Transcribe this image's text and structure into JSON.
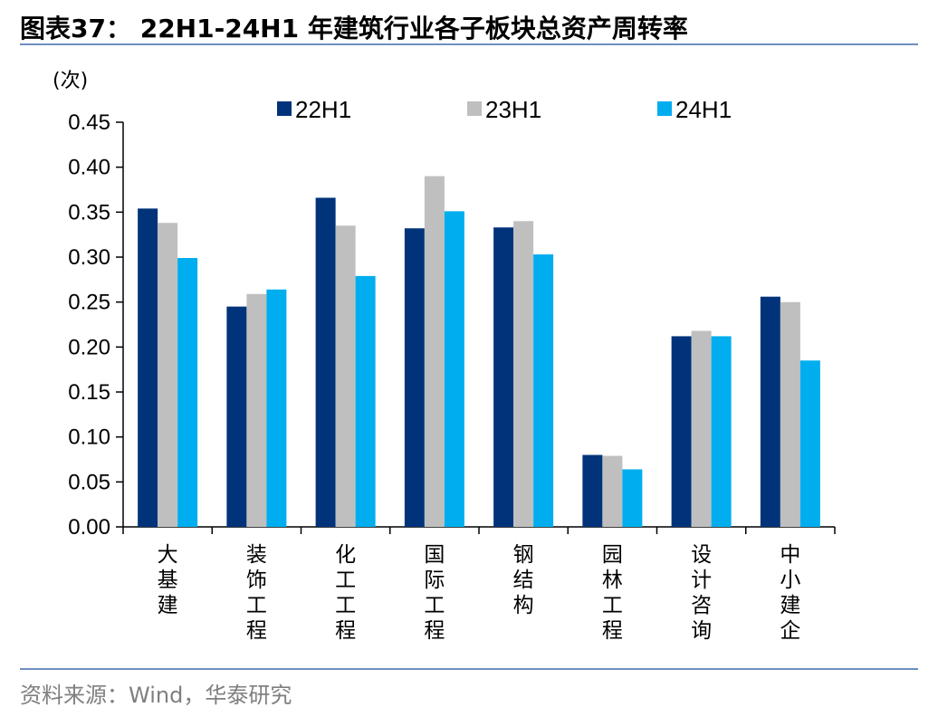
{
  "header": {
    "title": "图表37：  22H1-24H1 年建筑行业各子板块总资产周转率"
  },
  "footer": {
    "source": "资料来源：Wind，华泰研究"
  },
  "chart_data": {
    "type": "bar",
    "unit": "(次)",
    "categories": [
      "大基建",
      "装饰工程",
      "化工工程",
      "国际工程",
      "钢结构",
      "园林工程",
      "设计咨询",
      "中小建企"
    ],
    "series": [
      {
        "name": "22H1",
        "color": "#00337a",
        "values": [
          0.354,
          0.245,
          0.366,
          0.332,
          0.333,
          0.08,
          0.212,
          0.256
        ]
      },
      {
        "name": "23H1",
        "color": "#bfbfbf",
        "values": [
          0.338,
          0.259,
          0.335,
          0.39,
          0.34,
          0.079,
          0.218,
          0.25
        ]
      },
      {
        "name": "24H1",
        "color": "#00aeef",
        "values": [
          0.299,
          0.264,
          0.279,
          0.351,
          0.303,
          0.064,
          0.212,
          0.185
        ]
      }
    ],
    "ylim": [
      0,
      0.45
    ],
    "yticks": [
      "0.00",
      "0.05",
      "0.10",
      "0.15",
      "0.20",
      "0.25",
      "0.30",
      "0.35",
      "0.40",
      "0.45"
    ],
    "grid": false,
    "legend_position": "top"
  }
}
